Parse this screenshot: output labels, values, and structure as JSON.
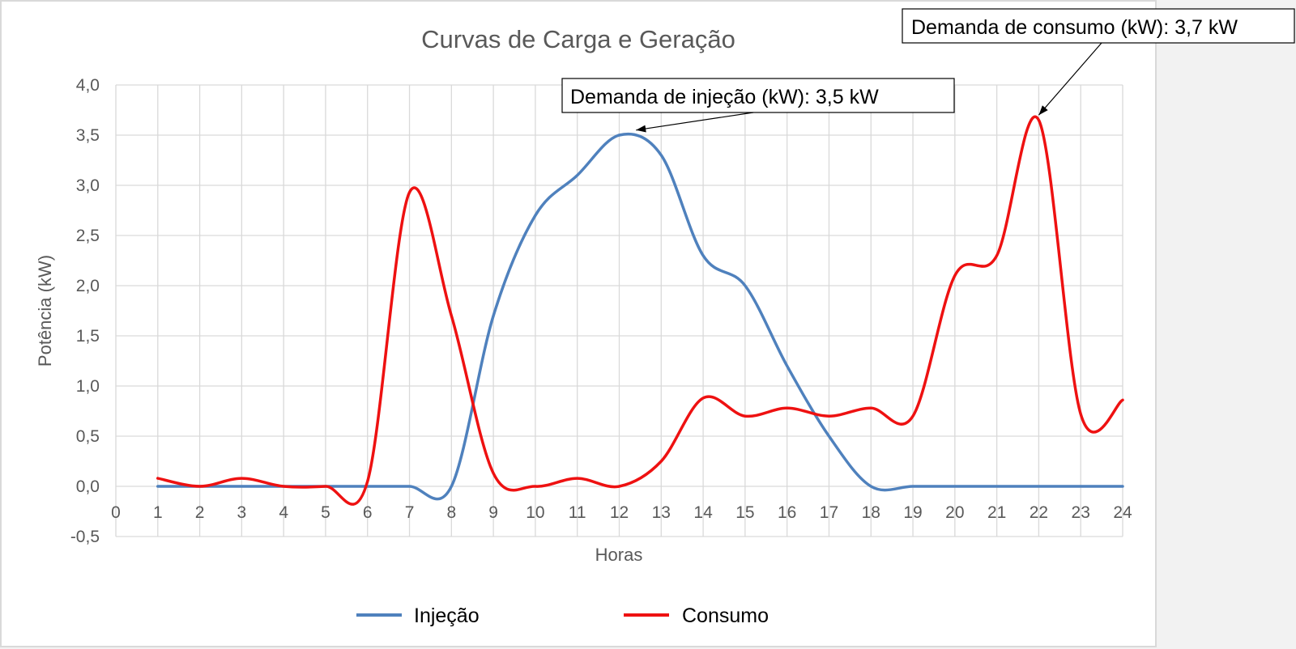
{
  "chart_data": {
    "type": "line",
    "title": "Curvas de Carga e Geração",
    "xlabel": "Horas",
    "ylabel": "Potência (kW)",
    "xlim": [
      0,
      24
    ],
    "ylim": [
      -0.5,
      4.0
    ],
    "x_ticks": [
      "0",
      "1",
      "2",
      "3",
      "4",
      "5",
      "6",
      "7",
      "8",
      "9",
      "10",
      "11",
      "12",
      "13",
      "14",
      "15",
      "16",
      "17",
      "18",
      "19",
      "20",
      "21",
      "22",
      "23",
      "24"
    ],
    "y_ticks": [
      "-0,5",
      "0,0",
      "0,5",
      "1,0",
      "1,5",
      "2,0",
      "2,5",
      "3,0",
      "3,5",
      "4,0"
    ],
    "grid": true,
    "legend_position": "bottom",
    "x": [
      1,
      2,
      3,
      4,
      5,
      6,
      7,
      8,
      9,
      10,
      11,
      12,
      13,
      14,
      15,
      16,
      17,
      18,
      19,
      20,
      21,
      22,
      23,
      24
    ],
    "series": [
      {
        "name": "Injeção",
        "color": "#4f81bd",
        "values": [
          0,
          0,
          0,
          0,
          0,
          0,
          0,
          0,
          1.7,
          2.7,
          3.1,
          3.5,
          3.3,
          2.3,
          2.0,
          1.2,
          0.5,
          0,
          0,
          0,
          0,
          0,
          0,
          0
        ]
      },
      {
        "name": "Consumo",
        "color": "#ee1111",
        "values": [
          0.08,
          0,
          0.08,
          0,
          0,
          0.05,
          2.93,
          1.7,
          0.13,
          0,
          0.08,
          0,
          0.25,
          0.88,
          0.7,
          0.78,
          0.7,
          0.78,
          0.7,
          2.1,
          2.3,
          3.65,
          0.72,
          0.86
        ]
      }
    ],
    "annotations": [
      {
        "text": "Demanda de injeção (kW): 3,5 kW",
        "target_x": 12.4,
        "target_y": 3.55
      },
      {
        "text": "Demanda de consumo (kW): 3,7 kW",
        "target_x": 22.0,
        "target_y": 3.7
      }
    ]
  }
}
